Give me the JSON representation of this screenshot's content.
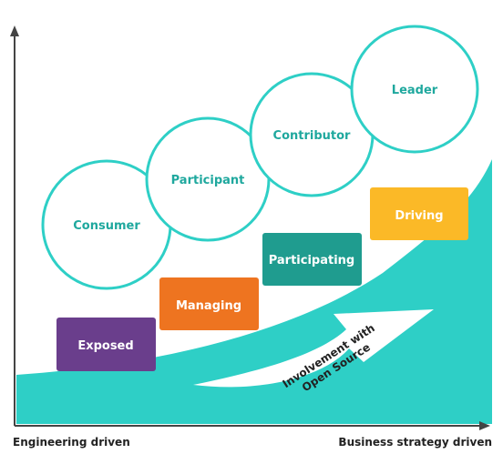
{
  "colors": {
    "teal": "#2ecfc6",
    "circle_text": "#1fa89e",
    "axis": "#444444",
    "exposed": "#6a3e8c",
    "managing": "#ee7420",
    "participating": "#1f9c8f",
    "driving": "#fbb927"
  },
  "axes": {
    "x_left_label": "Engineering driven",
    "x_right_label": "Business strategy driven"
  },
  "roles": [
    {
      "label": "Consumer"
    },
    {
      "label": "Participant"
    },
    {
      "label": "Contributor"
    },
    {
      "label": "Leader"
    }
  ],
  "stages": [
    {
      "label": "Exposed"
    },
    {
      "label": "Managing"
    },
    {
      "label": "Participating"
    },
    {
      "label": "Driving"
    }
  ],
  "arrow": {
    "line1": "Involvement with",
    "line2": "Open Source"
  }
}
